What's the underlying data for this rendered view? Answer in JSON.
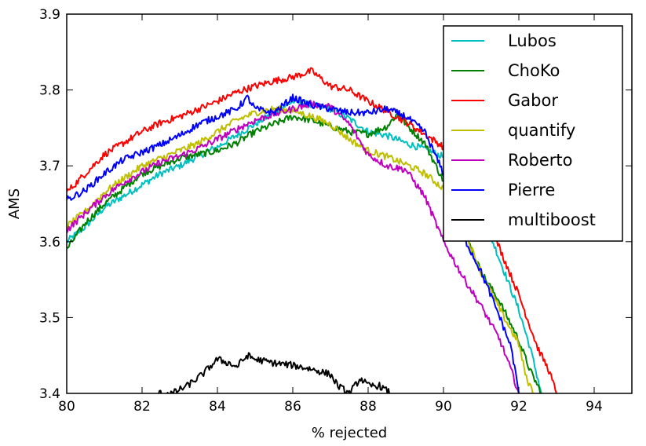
{
  "chart_data": {
    "type": "line",
    "title": "",
    "xlabel": "% rejected",
    "ylabel": "AMS",
    "xlim": [
      80,
      95
    ],
    "ylim": [
      3.4,
      3.9
    ],
    "xticks": [
      "80",
      "82",
      "84",
      "86",
      "88",
      "90",
      "92",
      "94"
    ],
    "yticks": [
      "3.4",
      "3.5",
      "3.6",
      "3.7",
      "3.8",
      "3.9"
    ],
    "grid": false,
    "legend_position": "top-right",
    "series": [
      {
        "name": "Lubos",
        "color": "#00bfbf",
        "points": [
          [
            80,
            3.6
          ],
          [
            80.5,
            3.62
          ],
          [
            81,
            3.645
          ],
          [
            81.5,
            3.66
          ],
          [
            82,
            3.675
          ],
          [
            82.5,
            3.69
          ],
          [
            83,
            3.7
          ],
          [
            83.5,
            3.713
          ],
          [
            84,
            3.725
          ],
          [
            84.5,
            3.74
          ],
          [
            85,
            3.755
          ],
          [
            85.5,
            3.77
          ],
          [
            86,
            3.785
          ],
          [
            86.5,
            3.78
          ],
          [
            87,
            3.775
          ],
          [
            87.5,
            3.762
          ],
          [
            88,
            3.745
          ],
          [
            88.5,
            3.74
          ],
          [
            89,
            3.73
          ],
          [
            89.5,
            3.722
          ],
          [
            90,
            3.712
          ],
          [
            90.5,
            3.702
          ],
          [
            91,
            3.64
          ],
          [
            91.5,
            3.575
          ],
          [
            92,
            3.51
          ],
          [
            92.3,
            3.46
          ],
          [
            92.6,
            3.4
          ]
        ]
      },
      {
        "name": "ChoKo",
        "color": "#008000",
        "points": [
          [
            80,
            3.59
          ],
          [
            80.5,
            3.625
          ],
          [
            81,
            3.65
          ],
          [
            81.5,
            3.67
          ],
          [
            82,
            3.69
          ],
          [
            82.5,
            3.7
          ],
          [
            83,
            3.71
          ],
          [
            83.5,
            3.715
          ],
          [
            84,
            3.72
          ],
          [
            84.5,
            3.73
          ],
          [
            85,
            3.745
          ],
          [
            85.5,
            3.755
          ],
          [
            86,
            3.765
          ],
          [
            86.5,
            3.76
          ],
          [
            87,
            3.752
          ],
          [
            87.5,
            3.745
          ],
          [
            88,
            3.742
          ],
          [
            88.5,
            3.752
          ],
          [
            88.8,
            3.77
          ],
          [
            89,
            3.755
          ],
          [
            89.5,
            3.73
          ],
          [
            90,
            3.68
          ],
          [
            90.5,
            3.62
          ],
          [
            91,
            3.56
          ],
          [
            91.5,
            3.52
          ],
          [
            92,
            3.47
          ],
          [
            92.3,
            3.43
          ],
          [
            92.6,
            3.4
          ]
        ]
      },
      {
        "name": "Gabor",
        "color": "#ff0000",
        "points": [
          [
            80,
            3.665
          ],
          [
            80.5,
            3.69
          ],
          [
            81,
            3.715
          ],
          [
            81.5,
            3.73
          ],
          [
            82,
            3.745
          ],
          [
            82.5,
            3.757
          ],
          [
            83,
            3.765
          ],
          [
            83.5,
            3.775
          ],
          [
            84,
            3.785
          ],
          [
            84.5,
            3.797
          ],
          [
            85,
            3.805
          ],
          [
            85.5,
            3.812
          ],
          [
            86,
            3.817
          ],
          [
            86.5,
            3.825
          ],
          [
            87,
            3.805
          ],
          [
            87.5,
            3.8
          ],
          [
            88,
            3.785
          ],
          [
            88.5,
            3.772
          ],
          [
            89,
            3.758
          ],
          [
            89.5,
            3.742
          ],
          [
            90,
            3.725
          ],
          [
            90.5,
            3.7
          ],
          [
            91,
            3.65
          ],
          [
            91.5,
            3.59
          ],
          [
            92,
            3.53
          ],
          [
            92.5,
            3.46
          ],
          [
            92.8,
            3.43
          ],
          [
            93,
            3.4
          ]
        ]
      },
      {
        "name": "quantify",
        "color": "#bfbf00",
        "points": [
          [
            80,
            3.62
          ],
          [
            80.5,
            3.64
          ],
          [
            81,
            3.665
          ],
          [
            81.5,
            3.683
          ],
          [
            82,
            3.7
          ],
          [
            82.5,
            3.71
          ],
          [
            83,
            3.72
          ],
          [
            83.5,
            3.73
          ],
          [
            84,
            3.745
          ],
          [
            84.5,
            3.76
          ],
          [
            85,
            3.77
          ],
          [
            85.5,
            3.775
          ],
          [
            86,
            3.773
          ],
          [
            86.5,
            3.765
          ],
          [
            87,
            3.755
          ],
          [
            87.5,
            3.735
          ],
          [
            88,
            3.72
          ],
          [
            88.5,
            3.712
          ],
          [
            89,
            3.702
          ],
          [
            89.5,
            3.69
          ],
          [
            90,
            3.67
          ],
          [
            90.5,
            3.62
          ],
          [
            91,
            3.56
          ],
          [
            91.5,
            3.51
          ],
          [
            92,
            3.465
          ],
          [
            92.2,
            3.42
          ],
          [
            92.4,
            3.4
          ]
        ]
      },
      {
        "name": "Roberto",
        "color": "#bf00bf",
        "points": [
          [
            80,
            3.615
          ],
          [
            80.5,
            3.638
          ],
          [
            81,
            3.66
          ],
          [
            81.5,
            3.678
          ],
          [
            82,
            3.692
          ],
          [
            82.5,
            3.705
          ],
          [
            83,
            3.713
          ],
          [
            83.5,
            3.723
          ],
          [
            84,
            3.735
          ],
          [
            84.5,
            3.748
          ],
          [
            85,
            3.76
          ],
          [
            85.5,
            3.768
          ],
          [
            86,
            3.775
          ],
          [
            86.5,
            3.782
          ],
          [
            87,
            3.778
          ],
          [
            87.5,
            3.755
          ],
          [
            88,
            3.715
          ],
          [
            88.5,
            3.7
          ],
          [
            89,
            3.695
          ],
          [
            89.5,
            3.66
          ],
          [
            90,
            3.6
          ],
          [
            90.5,
            3.555
          ],
          [
            91,
            3.515
          ],
          [
            91.5,
            3.47
          ],
          [
            91.8,
            3.43
          ],
          [
            92,
            3.4
          ]
        ]
      },
      {
        "name": "Pierre",
        "color": "#0000ff",
        "points": [
          [
            80,
            3.655
          ],
          [
            80.5,
            3.668
          ],
          [
            81,
            3.69
          ],
          [
            81.5,
            3.708
          ],
          [
            82,
            3.718
          ],
          [
            82.5,
            3.728
          ],
          [
            83,
            3.74
          ],
          [
            83.5,
            3.755
          ],
          [
            84,
            3.765
          ],
          [
            84.5,
            3.775
          ],
          [
            84.8,
            3.79
          ],
          [
            85,
            3.775
          ],
          [
            85.5,
            3.77
          ],
          [
            86,
            3.79
          ],
          [
            86.5,
            3.78
          ],
          [
            87,
            3.775
          ],
          [
            87.5,
            3.77
          ],
          [
            88,
            3.77
          ],
          [
            88.5,
            3.775
          ],
          [
            89,
            3.765
          ],
          [
            89.5,
            3.745
          ],
          [
            90,
            3.69
          ],
          [
            90.5,
            3.61
          ],
          [
            91,
            3.56
          ],
          [
            91.5,
            3.5
          ],
          [
            91.8,
            3.46
          ],
          [
            92,
            3.4
          ]
        ]
      },
      {
        "name": "multiboost",
        "color": "#000000",
        "points": [
          [
            82.4,
            3.4
          ],
          [
            82.8,
            3.4
          ],
          [
            83.2,
            3.41
          ],
          [
            83.6,
            3.425
          ],
          [
            84,
            3.445
          ],
          [
            84.3,
            3.44
          ],
          [
            84.5,
            3.435
          ],
          [
            84.8,
            3.45
          ],
          [
            85,
            3.445
          ],
          [
            85.5,
            3.44
          ],
          [
            86,
            3.437
          ],
          [
            86.5,
            3.432
          ],
          [
            87,
            3.425
          ],
          [
            87.2,
            3.41
          ],
          [
            87.5,
            3.4
          ],
          [
            87.8,
            3.42
          ],
          [
            88,
            3.41
          ],
          [
            88.3,
            3.41
          ],
          [
            88.6,
            3.4
          ]
        ]
      }
    ]
  }
}
